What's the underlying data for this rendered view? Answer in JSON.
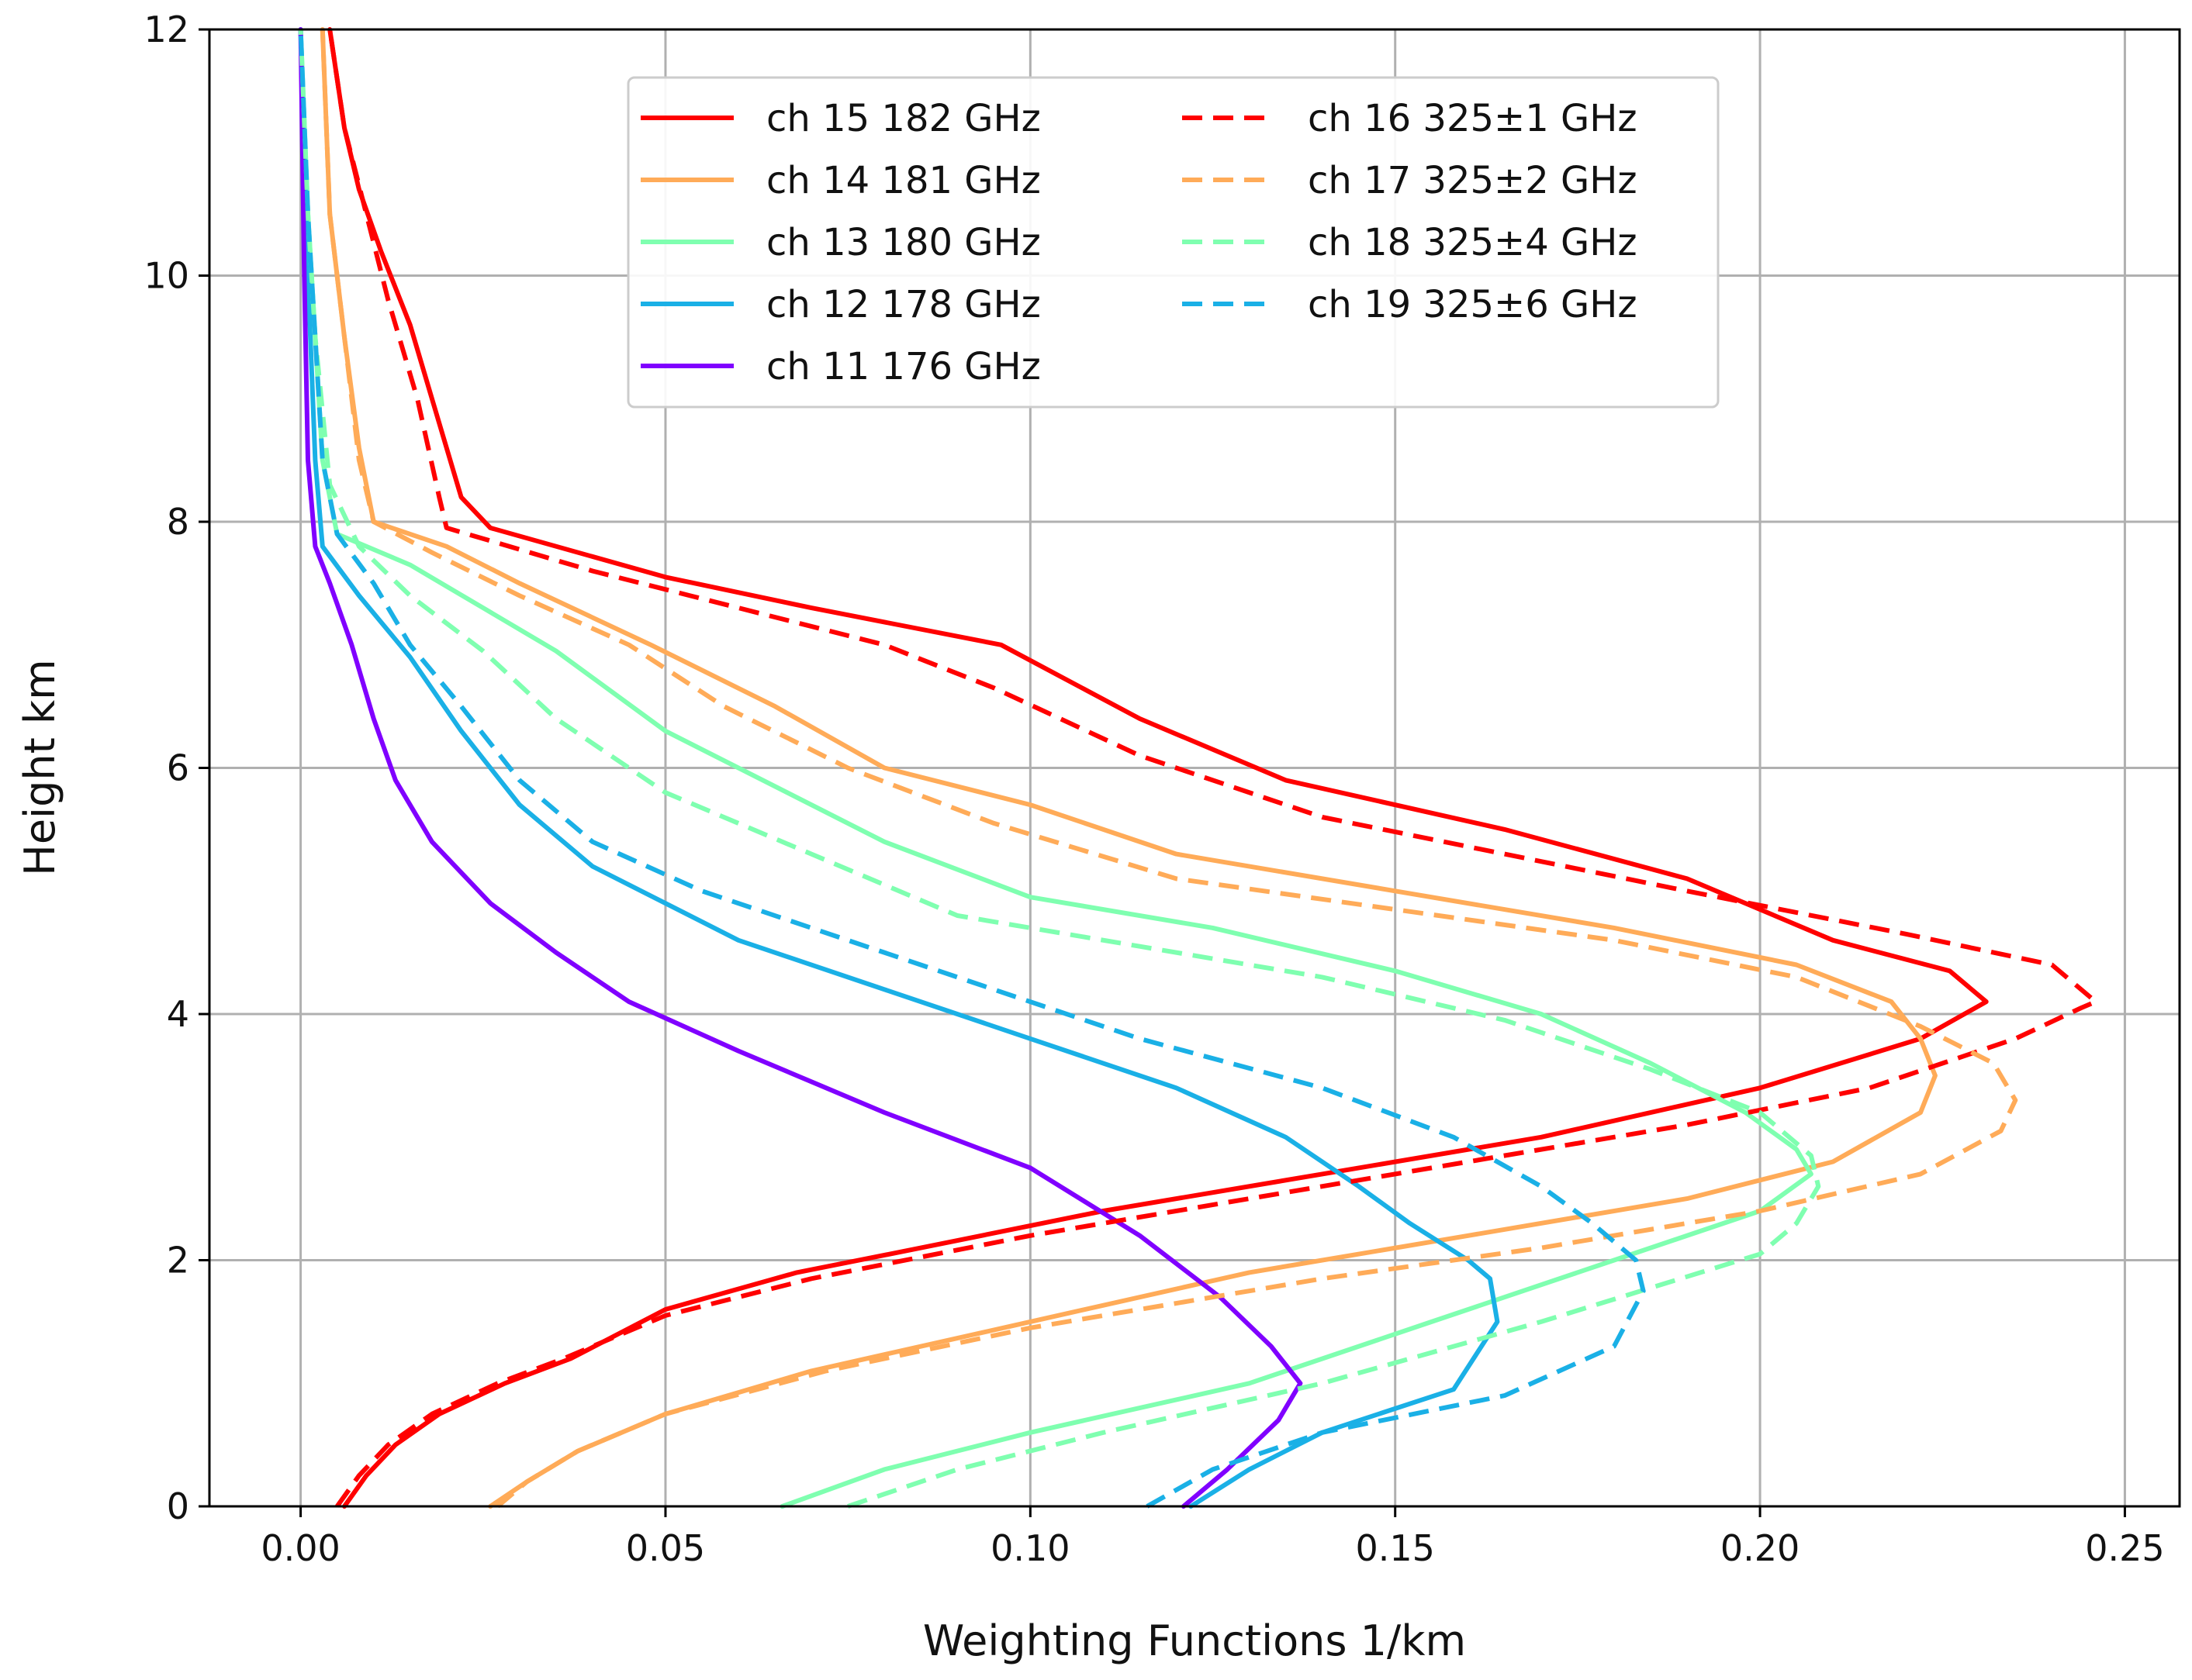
{
  "chart_data": {
    "type": "line",
    "title": "",
    "xlabel": "Weighting Functions 1/km",
    "ylabel": "Height km",
    "xlim": [
      -0.0125,
      0.2575
    ],
    "ylim": [
      0,
      12
    ],
    "xticks": [
      0.0,
      0.05,
      0.1,
      0.15,
      0.2,
      0.25
    ],
    "xtick_labels": [
      "0.00",
      "0.05",
      "0.10",
      "0.15",
      "0.20",
      "0.25"
    ],
    "yticks": [
      0,
      2,
      4,
      6,
      8,
      10,
      12
    ],
    "ytick_labels": [
      "0",
      "2",
      "4",
      "6",
      "8",
      "10",
      "12"
    ],
    "grid": true,
    "legend_position": "top-center",
    "series": [
      {
        "name": "ch 15 182 GHz",
        "color": "#ff0000",
        "style": "solid",
        "points": [
          [
            0.006,
            0
          ],
          [
            0.009,
            0.25
          ],
          [
            0.013,
            0.5
          ],
          [
            0.019,
            0.75
          ],
          [
            0.028,
            1.0
          ],
          [
            0.037,
            1.2
          ],
          [
            0.05,
            1.6
          ],
          [
            0.068,
            1.9
          ],
          [
            0.085,
            2.1
          ],
          [
            0.11,
            2.4
          ],
          [
            0.14,
            2.7
          ],
          [
            0.17,
            3.0
          ],
          [
            0.2,
            3.4
          ],
          [
            0.222,
            3.8
          ],
          [
            0.231,
            4.1
          ],
          [
            0.226,
            4.35
          ],
          [
            0.21,
            4.6
          ],
          [
            0.19,
            5.1
          ],
          [
            0.165,
            5.5
          ],
          [
            0.135,
            5.9
          ],
          [
            0.115,
            6.4
          ],
          [
            0.096,
            7.0
          ],
          [
            0.07,
            7.3
          ],
          [
            0.05,
            7.55
          ],
          [
            0.026,
            7.95
          ],
          [
            0.022,
            8.2
          ],
          [
            0.018,
            9.0
          ],
          [
            0.015,
            9.6
          ],
          [
            0.011,
            10.2
          ],
          [
            0.008,
            10.7
          ],
          [
            0.006,
            11.2
          ],
          [
            0.004,
            12.0
          ]
        ]
      },
      {
        "name": "ch 14 181 GHz",
        "color": "#ffab58",
        "style": "solid",
        "points": [
          [
            0.026,
            0
          ],
          [
            0.031,
            0.2
          ],
          [
            0.038,
            0.45
          ],
          [
            0.05,
            0.75
          ],
          [
            0.07,
            1.1
          ],
          [
            0.1,
            1.5
          ],
          [
            0.13,
            1.9
          ],
          [
            0.16,
            2.2
          ],
          [
            0.19,
            2.5
          ],
          [
            0.21,
            2.8
          ],
          [
            0.222,
            3.2
          ],
          [
            0.224,
            3.5
          ],
          [
            0.222,
            3.8
          ],
          [
            0.218,
            4.1
          ],
          [
            0.205,
            4.4
          ],
          [
            0.18,
            4.7
          ],
          [
            0.15,
            5.0
          ],
          [
            0.12,
            5.3
          ],
          [
            0.1,
            5.7
          ],
          [
            0.08,
            6.0
          ],
          [
            0.065,
            6.5
          ],
          [
            0.048,
            7.0
          ],
          [
            0.03,
            7.5
          ],
          [
            0.02,
            7.8
          ],
          [
            0.01,
            8.0
          ],
          [
            0.008,
            8.6
          ],
          [
            0.006,
            9.5
          ],
          [
            0.004,
            10.5
          ],
          [
            0.003,
            12.0
          ]
        ]
      },
      {
        "name": "ch 13 180 GHz",
        "color": "#7fffb0",
        "style": "solid",
        "points": [
          [
            0.066,
            0
          ],
          [
            0.08,
            0.3
          ],
          [
            0.1,
            0.6
          ],
          [
            0.13,
            1.0
          ],
          [
            0.155,
            1.5
          ],
          [
            0.18,
            2.0
          ],
          [
            0.2,
            2.4
          ],
          [
            0.207,
            2.7
          ],
          [
            0.205,
            2.9
          ],
          [
            0.198,
            3.2
          ],
          [
            0.185,
            3.6
          ],
          [
            0.17,
            4.0
          ],
          [
            0.15,
            4.35
          ],
          [
            0.125,
            4.7
          ],
          [
            0.1,
            4.95
          ],
          [
            0.08,
            5.4
          ],
          [
            0.065,
            5.85
          ],
          [
            0.05,
            6.3
          ],
          [
            0.035,
            6.95
          ],
          [
            0.025,
            7.3
          ],
          [
            0.015,
            7.65
          ],
          [
            0.005,
            7.9
          ],
          [
            0.003,
            8.5
          ],
          [
            0.002,
            9.5
          ],
          [
            0.001,
            10.5
          ],
          [
            0.0,
            12.0
          ]
        ]
      },
      {
        "name": "ch 12 178 GHz",
        "color": "#1ab0e6",
        "style": "solid",
        "points": [
          [
            0.122,
            0
          ],
          [
            0.13,
            0.3
          ],
          [
            0.14,
            0.6
          ],
          [
            0.158,
            0.95
          ],
          [
            0.164,
            1.5
          ],
          [
            0.163,
            1.85
          ],
          [
            0.16,
            2.0
          ],
          [
            0.152,
            2.3
          ],
          [
            0.145,
            2.6
          ],
          [
            0.135,
            3.0
          ],
          [
            0.12,
            3.4
          ],
          [
            0.1,
            3.8
          ],
          [
            0.08,
            4.2
          ],
          [
            0.06,
            4.6
          ],
          [
            0.04,
            5.2
          ],
          [
            0.03,
            5.7
          ],
          [
            0.022,
            6.3
          ],
          [
            0.015,
            6.9
          ],
          [
            0.008,
            7.4
          ],
          [
            0.003,
            7.8
          ],
          [
            0.002,
            8.5
          ],
          [
            0.001,
            10.0
          ],
          [
            0.0,
            12.0
          ]
        ]
      },
      {
        "name": "ch 11 176 GHz",
        "color": "#8000ff",
        "style": "solid",
        "points": [
          [
            0.121,
            0
          ],
          [
            0.127,
            0.3
          ],
          [
            0.134,
            0.7
          ],
          [
            0.137,
            1.0
          ],
          [
            0.133,
            1.3
          ],
          [
            0.126,
            1.7
          ],
          [
            0.115,
            2.2
          ],
          [
            0.1,
            2.75
          ],
          [
            0.08,
            3.2
          ],
          [
            0.06,
            3.7
          ],
          [
            0.045,
            4.1
          ],
          [
            0.035,
            4.5
          ],
          [
            0.026,
            4.9
          ],
          [
            0.018,
            5.4
          ],
          [
            0.013,
            5.9
          ],
          [
            0.01,
            6.4
          ],
          [
            0.007,
            7.0
          ],
          [
            0.004,
            7.5
          ],
          [
            0.002,
            7.8
          ],
          [
            0.001,
            8.5
          ],
          [
            0.0005,
            10.0
          ],
          [
            0.0,
            12.0
          ]
        ]
      },
      {
        "name": "ch 16 325±1 GHz",
        "color": "#ff0000",
        "style": "dashed",
        "points": [
          [
            0.005,
            0
          ],
          [
            0.008,
            0.25
          ],
          [
            0.012,
            0.5
          ],
          [
            0.018,
            0.75
          ],
          [
            0.027,
            1.0
          ],
          [
            0.036,
            1.2
          ],
          [
            0.05,
            1.55
          ],
          [
            0.07,
            1.85
          ],
          [
            0.1,
            2.2
          ],
          [
            0.13,
            2.5
          ],
          [
            0.16,
            2.8
          ],
          [
            0.19,
            3.1
          ],
          [
            0.215,
            3.4
          ],
          [
            0.235,
            3.8
          ],
          [
            0.244,
            4.05
          ],
          [
            0.246,
            4.1
          ],
          [
            0.24,
            4.4
          ],
          [
            0.22,
            4.65
          ],
          [
            0.19,
            5.0
          ],
          [
            0.165,
            5.3
          ],
          [
            0.14,
            5.6
          ],
          [
            0.115,
            6.1
          ],
          [
            0.095,
            6.65
          ],
          [
            0.08,
            7.0
          ],
          [
            0.06,
            7.3
          ],
          [
            0.04,
            7.6
          ],
          [
            0.02,
            7.95
          ],
          [
            0.019,
            8.2
          ],
          [
            0.016,
            9.0
          ],
          [
            0.012,
            9.8
          ],
          [
            0.009,
            10.5
          ],
          [
            0.006,
            11.2
          ],
          [
            0.004,
            12.0
          ]
        ]
      },
      {
        "name": "ch 17 325±2 GHz",
        "color": "#ffab58",
        "style": "dashed",
        "points": [
          [
            0.027,
            0
          ],
          [
            0.031,
            0.2
          ],
          [
            0.038,
            0.45
          ],
          [
            0.05,
            0.75
          ],
          [
            0.072,
            1.1
          ],
          [
            0.1,
            1.45
          ],
          [
            0.14,
            1.85
          ],
          [
            0.17,
            2.1
          ],
          [
            0.2,
            2.4
          ],
          [
            0.222,
            2.7
          ],
          [
            0.233,
            3.05
          ],
          [
            0.235,
            3.3
          ],
          [
            0.232,
            3.6
          ],
          [
            0.222,
            3.9
          ],
          [
            0.205,
            4.3
          ],
          [
            0.18,
            4.6
          ],
          [
            0.15,
            4.85
          ],
          [
            0.12,
            5.1
          ],
          [
            0.095,
            5.55
          ],
          [
            0.075,
            6.0
          ],
          [
            0.058,
            6.5
          ],
          [
            0.045,
            7.0
          ],
          [
            0.03,
            7.4
          ],
          [
            0.018,
            7.75
          ],
          [
            0.01,
            8.0
          ],
          [
            0.008,
            8.5
          ],
          [
            0.006,
            9.5
          ],
          [
            0.004,
            10.5
          ],
          [
            0.003,
            12.0
          ]
        ]
      },
      {
        "name": "ch 18 325±4 GHz",
        "color": "#7fffb0",
        "style": "dashed",
        "points": [
          [
            0.075,
            0
          ],
          [
            0.09,
            0.3
          ],
          [
            0.11,
            0.6
          ],
          [
            0.14,
            1.0
          ],
          [
            0.17,
            1.5
          ],
          [
            0.2,
            2.05
          ],
          [
            0.205,
            2.3
          ],
          [
            0.208,
            2.6
          ],
          [
            0.207,
            2.85
          ],
          [
            0.2,
            3.2
          ],
          [
            0.185,
            3.55
          ],
          [
            0.165,
            3.95
          ],
          [
            0.14,
            4.3
          ],
          [
            0.115,
            4.55
          ],
          [
            0.09,
            4.8
          ],
          [
            0.07,
            5.3
          ],
          [
            0.05,
            5.8
          ],
          [
            0.035,
            6.4
          ],
          [
            0.025,
            6.95
          ],
          [
            0.015,
            7.4
          ],
          [
            0.008,
            7.8
          ],
          [
            0.004,
            8.3
          ],
          [
            0.002,
            9.5
          ],
          [
            0.001,
            10.5
          ],
          [
            0.0,
            12.0
          ]
        ]
      },
      {
        "name": "ch 19 325±6 GHz",
        "color": "#1ab0e6",
        "style": "dashed",
        "points": [
          [
            0.116,
            0
          ],
          [
            0.125,
            0.3
          ],
          [
            0.14,
            0.6
          ],
          [
            0.165,
            0.9
          ],
          [
            0.18,
            1.3
          ],
          [
            0.184,
            1.75
          ],
          [
            0.183,
            2.0
          ],
          [
            0.177,
            2.3
          ],
          [
            0.17,
            2.6
          ],
          [
            0.158,
            3.0
          ],
          [
            0.14,
            3.4
          ],
          [
            0.115,
            3.8
          ],
          [
            0.095,
            4.2
          ],
          [
            0.075,
            4.6
          ],
          [
            0.055,
            5.0
          ],
          [
            0.04,
            5.4
          ],
          [
            0.03,
            5.9
          ],
          [
            0.022,
            6.5
          ],
          [
            0.015,
            7.0
          ],
          [
            0.01,
            7.5
          ],
          [
            0.005,
            7.9
          ],
          [
            0.003,
            8.5
          ],
          [
            0.002,
            9.5
          ],
          [
            0.001,
            10.5
          ],
          [
            0.0,
            12.0
          ]
        ]
      }
    ]
  }
}
